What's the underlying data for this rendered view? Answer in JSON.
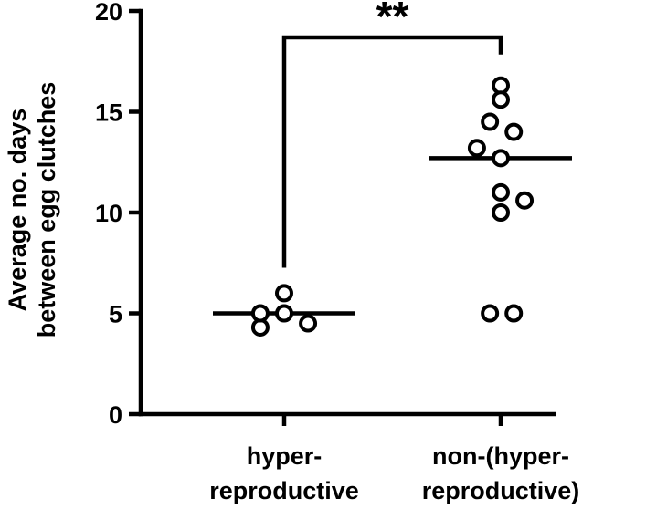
{
  "chart_data": {
    "type": "scatter",
    "ylabel_lines": [
      "Average no. days",
      "between egg clutches"
    ],
    "ylim": [
      0,
      20
    ],
    "yticks": [
      0,
      5,
      10,
      15,
      20
    ],
    "categories": [
      {
        "label_lines": [
          "hyper-",
          "reproductive"
        ]
      },
      {
        "label_lines": [
          "non-(hyper-",
          "reproductive)"
        ]
      }
    ],
    "series": [
      {
        "category_index": 0,
        "mean": 5.0,
        "points": [
          {
            "offset": -0.11,
            "y": 4.3
          },
          {
            "offset": -0.11,
            "y": 5.0
          },
          {
            "offset": 0.0,
            "y": 5.0
          },
          {
            "offset": 0.0,
            "y": 6.0
          },
          {
            "offset": 0.11,
            "y": 4.5
          }
        ]
      },
      {
        "category_index": 1,
        "mean": 12.7,
        "points": [
          {
            "offset": 0.0,
            "y": 16.3
          },
          {
            "offset": 0.0,
            "y": 15.6
          },
          {
            "offset": -0.05,
            "y": 14.5
          },
          {
            "offset": 0.06,
            "y": 14.0
          },
          {
            "offset": -0.11,
            "y": 13.2
          },
          {
            "offset": 0.0,
            "y": 12.7
          },
          {
            "offset": 0.0,
            "y": 11.0
          },
          {
            "offset": 0.11,
            "y": 10.6
          },
          {
            "offset": 0.0,
            "y": 10.0
          },
          {
            "offset": -0.05,
            "y": 5.0
          },
          {
            "offset": 0.06,
            "y": 5.0
          }
        ]
      }
    ],
    "significance": {
      "label": "**",
      "between": [
        0,
        1
      ]
    }
  }
}
